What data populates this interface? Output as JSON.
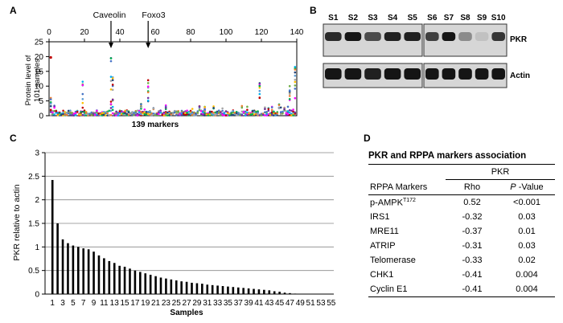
{
  "panels": {
    "a": "A",
    "b": "B",
    "c": "C",
    "d": "D"
  },
  "panelA": {
    "annotations": [
      "Caveolin",
      "Foxo3"
    ],
    "ylabel": "Protein level of 101 samples",
    "xlabel": "139 markers",
    "x_ticks": [
      "0",
      "20",
      "40",
      "60",
      "80",
      "100",
      "120",
      "140"
    ],
    "y_ticks": [
      "0",
      "5",
      "10",
      "15",
      "20",
      "25"
    ],
    "xlim": [
      0,
      140
    ],
    "ylim": [
      0,
      25
    ]
  },
  "panelB": {
    "lanes": [
      "S1",
      "S2",
      "S3",
      "S4",
      "S5",
      "S6",
      "S7",
      "S8",
      "S9",
      "S10"
    ],
    "rows": [
      "PKR",
      "Actin"
    ],
    "pkr_intensity": [
      0.85,
      0.95,
      0.7,
      0.9,
      0.9,
      0.75,
      0.95,
      0.4,
      0.15,
      0.8
    ],
    "actin_intensity": [
      0.95,
      0.95,
      0.9,
      0.95,
      0.95,
      0.95,
      0.95,
      0.95,
      0.95,
      0.95
    ]
  },
  "chart_data": {
    "type": "bar",
    "ylabel": "PKR relative to actin",
    "xlabel": "Samples",
    "ylim": [
      0,
      3
    ],
    "y_ticks": [
      "0",
      "0.5",
      "1",
      "1.5",
      "2",
      "2.5",
      "3"
    ],
    "x_tick_labels": [
      "1",
      "3",
      "5",
      "7",
      "9",
      "11",
      "13",
      "15",
      "17",
      "19",
      "21",
      "23",
      "25",
      "27",
      "29",
      "31",
      "33",
      "35",
      "37",
      "39",
      "41",
      "43",
      "45",
      "47",
      "49",
      "51",
      "53",
      "55"
    ],
    "grid": true,
    "values": [
      2.42,
      1.5,
      1.16,
      1.08,
      1.03,
      1.0,
      0.97,
      0.95,
      0.9,
      0.82,
      0.76,
      0.7,
      0.66,
      0.6,
      0.58,
      0.54,
      0.5,
      0.47,
      0.44,
      0.41,
      0.38,
      0.35,
      0.33,
      0.31,
      0.29,
      0.27,
      0.26,
      0.24,
      0.23,
      0.22,
      0.2,
      0.19,
      0.18,
      0.17,
      0.16,
      0.15,
      0.14,
      0.13,
      0.12,
      0.11,
      0.1,
      0.09,
      0.08,
      0.06,
      0.05,
      0.03,
      0.02,
      0.01,
      0.005,
      0.004,
      0.003,
      0.002,
      0.002,
      0.001,
      0.001
    ]
  },
  "tableD": {
    "title": "PKR and RPPA markers association",
    "group_header": "PKR",
    "col_markers": "RPPA Markers",
    "col_rho": "Rho",
    "col_p_italic": "P",
    "col_p_rest": " -Value",
    "rows": [
      {
        "marker": "p-AMPK",
        "sup": "T172",
        "rho": "0.52",
        "p": "<0.001"
      },
      {
        "marker": "IRS1",
        "sup": "",
        "rho": "-0.32",
        "p": "0.03"
      },
      {
        "marker": "MRE11",
        "sup": "",
        "rho": "-0.37",
        "p": "0.01"
      },
      {
        "marker": "ATRIP",
        "sup": "",
        "rho": "-0.31",
        "p": "0.03"
      },
      {
        "marker": "Telomerase",
        "sup": "",
        "rho": "-0.33",
        "p": "0.02"
      },
      {
        "marker": "CHK1",
        "sup": "",
        "rho": "-0.41",
        "p": "0.004"
      },
      {
        "marker": "Cyclin E1",
        "sup": "",
        "rho": "-0.41",
        "p": "0.004"
      }
    ]
  }
}
